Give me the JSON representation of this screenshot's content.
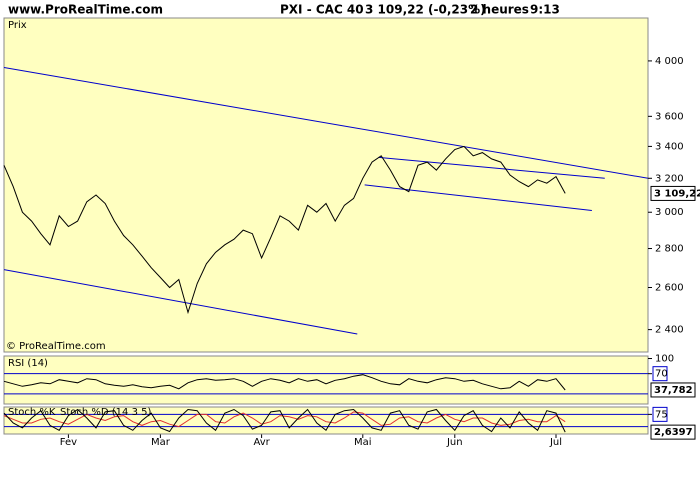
{
  "header": {
    "site": "www.ProRealTime.com",
    "instrument": "PXI - CAC 40",
    "quote": "3 109,22 (-0,23%)",
    "period": "2 heures",
    "time": "9:13"
  },
  "chart_data": [
    {
      "type": "line",
      "title": "Prix",
      "watermark": "© ProRealTime.com",
      "log_scale": true,
      "color": "#000000",
      "categories": [
        null,
        null,
        null,
        null,
        null,
        null,
        null,
        "Fev",
        null,
        null,
        null,
        null,
        null,
        null,
        null,
        null,
        null,
        "Mar",
        null,
        null,
        null,
        null,
        null,
        null,
        null,
        null,
        null,
        null,
        "Avr",
        null,
        null,
        null,
        null,
        null,
        null,
        null,
        null,
        null,
        null,
        "Mai",
        null,
        null,
        null,
        null,
        null,
        null,
        null,
        null,
        null,
        "Jun",
        null,
        null,
        null,
        null,
        null,
        null,
        null,
        null,
        null,
        null,
        "Jul",
        null
      ],
      "values": [
        3280,
        3150,
        3000,
        2950,
        2880,
        2820,
        2980,
        2920,
        2950,
        3060,
        3100,
        3050,
        2950,
        2870,
        2820,
        2760,
        2700,
        2650,
        2600,
        2640,
        2480,
        2620,
        2720,
        2780,
        2820,
        2850,
        2900,
        2880,
        2750,
        2860,
        2980,
        2950,
        2900,
        3040,
        3000,
        3050,
        2950,
        3040,
        3080,
        3200,
        3300,
        3340,
        3250,
        3150,
        3120,
        3280,
        3300,
        3250,
        3320,
        3380,
        3400,
        3340,
        3360,
        3320,
        3300,
        3220,
        3180,
        3150,
        3190,
        3170,
        3210,
        3109.22
      ],
      "last_label": "3 109,22",
      "ylim": [
        2300,
        4340
      ],
      "yticks": [
        {
          "value": 2400,
          "label": "2 400"
        },
        {
          "value": 2600,
          "label": "2 600"
        },
        {
          "value": 2800,
          "label": "2 800"
        },
        {
          "value": 3000,
          "label": "3 000"
        },
        {
          "value": 3200,
          "label": "3 200"
        },
        {
          "value": 3400,
          "label": "3 400"
        },
        {
          "value": 3600,
          "label": "3 600"
        },
        {
          "value": 4000,
          "label": "4 000"
        }
      ],
      "trendline_color": "#0000cc",
      "trendlines": [
        {
          "x": [
            0,
            70
          ],
          "y": [
            3950,
            3200
          ]
        },
        {
          "x": [
            0,
            38.4
          ],
          "y": [
            2690,
            2380
          ]
        },
        {
          "x": [
            40.7,
            65.3
          ],
          "y": [
            3330,
            3200
          ]
        },
        {
          "x": [
            39.2,
            63.9
          ],
          "y": [
            3160,
            3010
          ]
        }
      ]
    },
    {
      "type": "line",
      "title": "RSI (14)",
      "color": "#000000",
      "level_color": "#0000cc",
      "values": [
        55,
        50,
        45,
        48,
        52,
        50,
        58,
        55,
        52,
        60,
        58,
        50,
        47,
        45,
        48,
        44,
        42,
        45,
        47,
        40,
        52,
        58,
        60,
        57,
        58,
        60,
        55,
        45,
        55,
        60,
        57,
        52,
        60,
        55,
        58,
        50,
        57,
        60,
        65,
        68,
        62,
        55,
        50,
        48,
        60,
        55,
        52,
        58,
        62,
        60,
        55,
        57,
        50,
        45,
        40,
        42,
        55,
        45,
        58,
        55,
        60,
        37.782
      ],
      "last_label": "37,782",
      "ylim": [
        10,
        105
      ],
      "yticks": [
        100,
        70
      ],
      "levels": [
        70,
        30
      ]
    },
    {
      "type": "line",
      "level_color": "#0000cc",
      "series": [
        {
          "name": "Stoch %K",
          "color": "#000000",
          "values": [
            80,
            40,
            20,
            60,
            90,
            30,
            10,
            70,
            95,
            60,
            20,
            85,
            90,
            30,
            10,
            50,
            80,
            20,
            5,
            60,
            95,
            90,
            40,
            10,
            80,
            95,
            70,
            15,
            30,
            85,
            90,
            20,
            60,
            95,
            40,
            10,
            75,
            90,
            95,
            60,
            20,
            10,
            80,
            90,
            30,
            15,
            85,
            95,
            50,
            10,
            70,
            90,
            30,
            5,
            60,
            20,
            85,
            40,
            10,
            90,
            80,
            2.6397
          ]
        },
        {
          "name": "Stoch %D (14 3 5)",
          "color": "#e03030",
          "values": [
            70,
            55,
            40,
            40,
            55,
            60,
            45,
            35,
            55,
            75,
            60,
            50,
            65,
            70,
            45,
            30,
            45,
            50,
            35,
            25,
            50,
            75,
            75,
            45,
            40,
            65,
            80,
            60,
            35,
            45,
            70,
            65,
            55,
            70,
            65,
            45,
            40,
            60,
            85,
            80,
            55,
            30,
            35,
            60,
            65,
            45,
            40,
            60,
            75,
            55,
            45,
            60,
            60,
            40,
            30,
            35,
            50,
            55,
            45,
            45,
            70,
            45
          ]
        }
      ],
      "last_label": "2,6397",
      "ylim": [
        -5,
        105
      ],
      "yticks": [
        75
      ],
      "levels": [
        75,
        25
      ]
    }
  ]
}
